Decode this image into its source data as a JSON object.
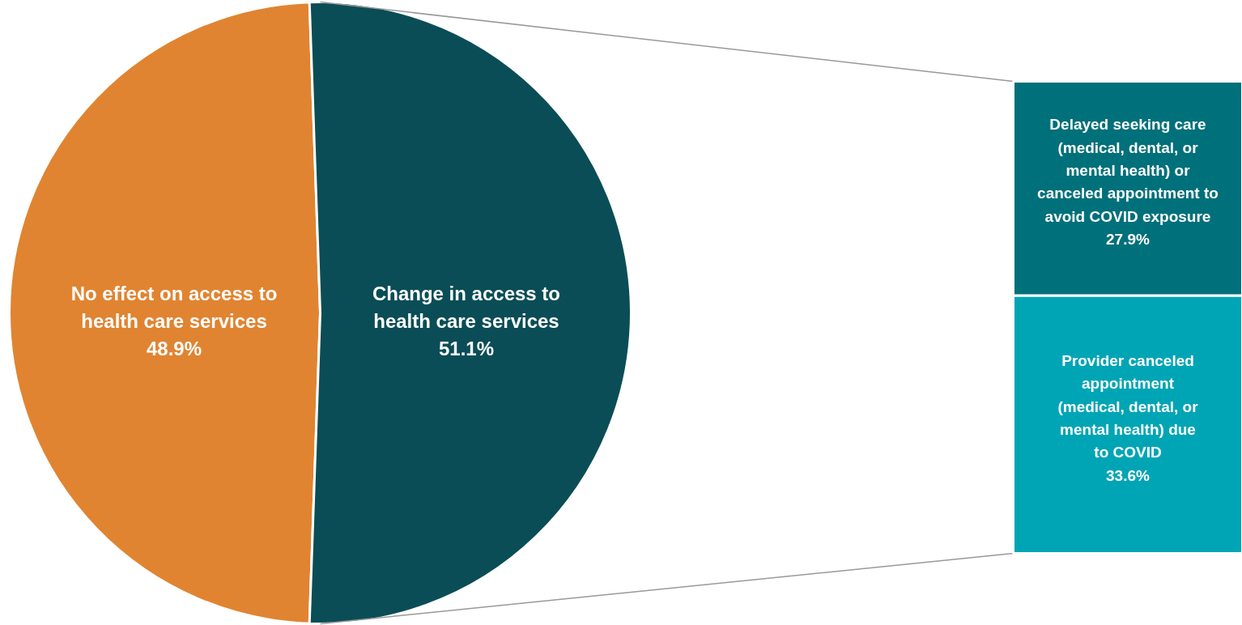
{
  "chart_data": [
    {
      "type": "pie",
      "categories": [
        "No effect on access to\nhealth care services",
        "Change in access to\nhealth care services"
      ],
      "values": [
        48.9,
        51.1
      ],
      "colors": [
        "#e08431",
        "#0a4d56"
      ],
      "value_labels": [
        "48.9%",
        "51.1%"
      ]
    },
    {
      "type": "bar",
      "stacked": true,
      "categories": [
        null
      ],
      "series": [
        {
          "name": "Provider canceled\nappointment\n(medical, dental, or\nmental health) due\nto COVID",
          "color": "#00a5b5",
          "values": [
            33.6
          ],
          "value_labels": [
            "33.6%"
          ]
        },
        {
          "name": "Delayed seeking care\n(medical, dental, or\nmental health) or\ncanceled appointment to\navoid COVID exposure",
          "color": "#00707a",
          "values": [
            27.9
          ],
          "value_labels": [
            "27.9%"
          ]
        }
      ]
    }
  ]
}
